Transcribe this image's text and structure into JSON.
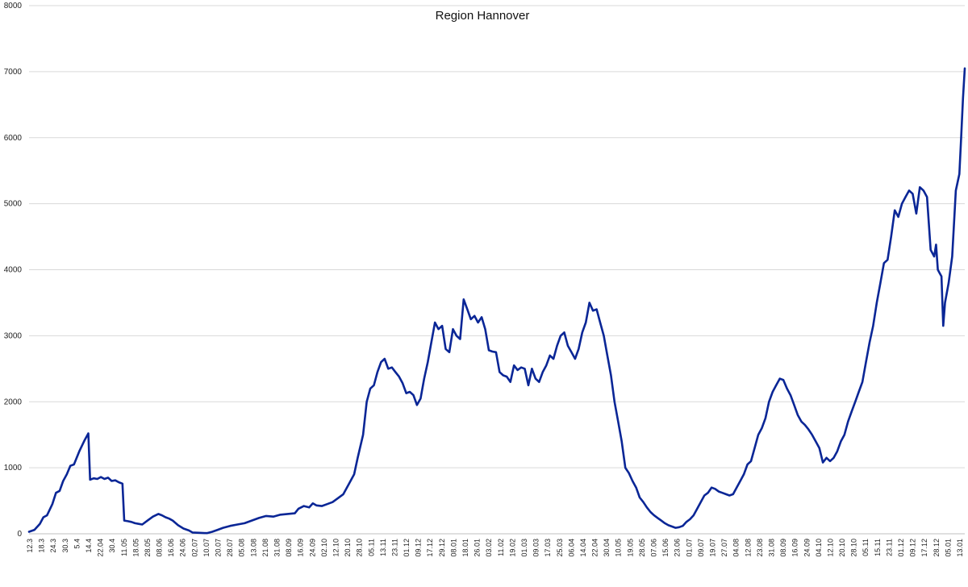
{
  "chart_data": {
    "type": "line",
    "title": "Region Hannover",
    "xlabel": "",
    "ylabel": "",
    "ylim": [
      0,
      8000
    ],
    "yticks": [
      "0",
      "1000",
      "2000",
      "3000",
      "4000",
      "5000",
      "6000",
      "7000",
      "8000"
    ],
    "grid": true,
    "legend": "none",
    "line_color": "#0a2696",
    "grid_color": "#d9d9d9",
    "x_tick_labels": [
      "12.3",
      "18.3",
      "24.3",
      "30.3",
      "5.4",
      "14.4",
      "22.04",
      "30.4",
      "11.05",
      "18.05",
      "28.05",
      "08.06",
      "16.06",
      "24.06",
      "02.07",
      "10.07",
      "20.07",
      "28.07",
      "05.08",
      "13.08",
      "21.08",
      "31.08",
      "08.09",
      "16.09",
      "24.09",
      "02.10",
      "12.10",
      "20.10",
      "28.10",
      "05.11",
      "13.11",
      "23.11",
      "01.12",
      "09.12",
      "17.12",
      "29.12",
      "08.01",
      "18.01",
      "26.01",
      "03.02",
      "11.02",
      "19.02",
      "01.03",
      "09.03",
      "17.03",
      "25.03",
      "06.04",
      "14.04",
      "22.04",
      "30.04",
      "10.05",
      "19.05",
      "28.05",
      "07.06",
      "15.06",
      "23.06",
      "01.07",
      "09.07",
      "19.07",
      "27.07",
      "04.08",
      "12.08",
      "23.08",
      "31.08",
      "08.09",
      "16.09",
      "24.09",
      "04.10",
      "12.10",
      "20.10",
      "28.10",
      "05.11",
      "15.11",
      "23.11",
      "01.12",
      "09.12",
      "17.12",
      "28.12",
      "05.01",
      "13.01"
    ],
    "series": [
      {
        "values": [
          [
            0,
            30
          ],
          [
            3,
            60
          ],
          [
            6,
            150
          ],
          [
            8,
            250
          ],
          [
            10,
            280
          ],
          [
            13,
            450
          ],
          [
            15,
            620
          ],
          [
            17,
            650
          ],
          [
            19,
            800
          ],
          [
            21,
            900
          ],
          [
            23,
            1030
          ],
          [
            25,
            1050
          ],
          [
            28,
            1250
          ],
          [
            31,
            1420
          ],
          [
            33,
            1520
          ],
          [
            34,
            820
          ],
          [
            36,
            840
          ],
          [
            38,
            830
          ],
          [
            40,
            860
          ],
          [
            42,
            830
          ],
          [
            44,
            850
          ],
          [
            46,
            800
          ],
          [
            48,
            810
          ],
          [
            50,
            780
          ],
          [
            52,
            760
          ],
          [
            53,
            200
          ],
          [
            55,
            190
          ],
          [
            57,
            180
          ],
          [
            59,
            160
          ],
          [
            61,
            150
          ],
          [
            63,
            140
          ],
          [
            66,
            200
          ],
          [
            69,
            260
          ],
          [
            72,
            300
          ],
          [
            74,
            280
          ],
          [
            76,
            250
          ],
          [
            78,
            230
          ],
          [
            80,
            200
          ],
          [
            83,
            130
          ],
          [
            86,
            80
          ],
          [
            89,
            50
          ],
          [
            91,
            20
          ],
          [
            95,
            15
          ],
          [
            99,
            10
          ],
          [
            102,
            30
          ],
          [
            105,
            60
          ],
          [
            108,
            90
          ],
          [
            112,
            120
          ],
          [
            116,
            140
          ],
          [
            120,
            160
          ],
          [
            124,
            200
          ],
          [
            128,
            240
          ],
          [
            132,
            270
          ],
          [
            136,
            260
          ],
          [
            140,
            290
          ],
          [
            144,
            300
          ],
          [
            148,
            310
          ],
          [
            150,
            380
          ],
          [
            153,
            420
          ],
          [
            156,
            400
          ],
          [
            158,
            460
          ],
          [
            160,
            430
          ],
          [
            163,
            420
          ],
          [
            166,
            450
          ],
          [
            169,
            480
          ],
          [
            172,
            540
          ],
          [
            175,
            600
          ],
          [
            178,
            750
          ],
          [
            181,
            900
          ],
          [
            183,
            1150
          ],
          [
            186,
            1500
          ],
          [
            188,
            2000
          ],
          [
            190,
            2200
          ],
          [
            192,
            2250
          ],
          [
            194,
            2450
          ],
          [
            196,
            2600
          ],
          [
            198,
            2650
          ],
          [
            200,
            2500
          ],
          [
            202,
            2520
          ],
          [
            204,
            2450
          ],
          [
            206,
            2380
          ],
          [
            208,
            2280
          ],
          [
            210,
            2130
          ],
          [
            212,
            2150
          ],
          [
            214,
            2100
          ],
          [
            216,
            1950
          ],
          [
            218,
            2050
          ],
          [
            220,
            2350
          ],
          [
            222,
            2600
          ],
          [
            224,
            2900
          ],
          [
            226,
            3200
          ],
          [
            228,
            3100
          ],
          [
            230,
            3150
          ],
          [
            232,
            2800
          ],
          [
            234,
            2750
          ],
          [
            236,
            3100
          ],
          [
            238,
            3000
          ],
          [
            240,
            2950
          ],
          [
            242,
            3550
          ],
          [
            244,
            3400
          ],
          [
            246,
            3250
          ],
          [
            248,
            3300
          ],
          [
            250,
            3200
          ],
          [
            252,
            3280
          ],
          [
            254,
            3100
          ],
          [
            256,
            2780
          ],
          [
            258,
            2760
          ],
          [
            260,
            2750
          ],
          [
            262,
            2450
          ],
          [
            264,
            2400
          ],
          [
            266,
            2380
          ],
          [
            268,
            2300
          ],
          [
            270,
            2550
          ],
          [
            272,
            2480
          ],
          [
            274,
            2520
          ],
          [
            276,
            2500
          ],
          [
            278,
            2250
          ],
          [
            280,
            2500
          ],
          [
            282,
            2350
          ],
          [
            284,
            2300
          ],
          [
            286,
            2450
          ],
          [
            288,
            2550
          ],
          [
            290,
            2700
          ],
          [
            292,
            2650
          ],
          [
            294,
            2850
          ],
          [
            296,
            3000
          ],
          [
            298,
            3050
          ],
          [
            300,
            2850
          ],
          [
            302,
            2750
          ],
          [
            304,
            2650
          ],
          [
            306,
            2800
          ],
          [
            308,
            3050
          ],
          [
            310,
            3200
          ],
          [
            312,
            3500
          ],
          [
            314,
            3380
          ],
          [
            316,
            3400
          ],
          [
            318,
            3200
          ],
          [
            320,
            3000
          ],
          [
            322,
            2700
          ],
          [
            324,
            2400
          ],
          [
            326,
            2000
          ],
          [
            328,
            1700
          ],
          [
            330,
            1400
          ],
          [
            332,
            1000
          ],
          [
            334,
            920
          ],
          [
            336,
            800
          ],
          [
            338,
            700
          ],
          [
            340,
            550
          ],
          [
            342,
            480
          ],
          [
            344,
            400
          ],
          [
            346,
            330
          ],
          [
            348,
            280
          ],
          [
            350,
            240
          ],
          [
            352,
            200
          ],
          [
            354,
            160
          ],
          [
            356,
            130
          ],
          [
            358,
            110
          ],
          [
            360,
            90
          ],
          [
            362,
            100
          ],
          [
            364,
            120
          ],
          [
            366,
            180
          ],
          [
            368,
            220
          ],
          [
            370,
            280
          ],
          [
            372,
            380
          ],
          [
            374,
            480
          ],
          [
            376,
            580
          ],
          [
            378,
            620
          ],
          [
            380,
            700
          ],
          [
            382,
            680
          ],
          [
            384,
            640
          ],
          [
            386,
            620
          ],
          [
            388,
            600
          ],
          [
            390,
            580
          ],
          [
            392,
            600
          ],
          [
            394,
            700
          ],
          [
            396,
            800
          ],
          [
            398,
            900
          ],
          [
            400,
            1050
          ],
          [
            402,
            1100
          ],
          [
            404,
            1300
          ],
          [
            406,
            1500
          ],
          [
            408,
            1600
          ],
          [
            410,
            1750
          ],
          [
            412,
            2000
          ],
          [
            414,
            2150
          ],
          [
            416,
            2250
          ],
          [
            418,
            2350
          ],
          [
            420,
            2330
          ],
          [
            422,
            2200
          ],
          [
            424,
            2100
          ],
          [
            426,
            1950
          ],
          [
            428,
            1800
          ],
          [
            430,
            1700
          ],
          [
            432,
            1650
          ],
          [
            434,
            1580
          ],
          [
            436,
            1500
          ],
          [
            438,
            1400
          ],
          [
            440,
            1300
          ],
          [
            442,
            1080
          ],
          [
            444,
            1150
          ],
          [
            446,
            1100
          ],
          [
            448,
            1150
          ],
          [
            450,
            1250
          ],
          [
            452,
            1400
          ],
          [
            454,
            1500
          ],
          [
            456,
            1700
          ],
          [
            458,
            1850
          ],
          [
            460,
            2000
          ],
          [
            462,
            2150
          ],
          [
            464,
            2300
          ],
          [
            466,
            2600
          ],
          [
            468,
            2900
          ],
          [
            470,
            3150
          ],
          [
            472,
            3500
          ],
          [
            474,
            3800
          ],
          [
            476,
            4100
          ],
          [
            478,
            4150
          ],
          [
            480,
            4500
          ],
          [
            482,
            4900
          ],
          [
            484,
            4800
          ],
          [
            486,
            5000
          ],
          [
            488,
            5100
          ],
          [
            490,
            5200
          ],
          [
            492,
            5150
          ],
          [
            494,
            4850
          ],
          [
            496,
            5250
          ],
          [
            498,
            5200
          ],
          [
            500,
            5100
          ],
          [
            502,
            4300
          ],
          [
            504,
            4200
          ],
          [
            505,
            4380
          ],
          [
            506,
            4000
          ],
          [
            507,
            3950
          ],
          [
            508,
            3900
          ],
          [
            509,
            3150
          ],
          [
            510,
            3500
          ],
          [
            512,
            3800
          ],
          [
            514,
            4200
          ],
          [
            516,
            5200
          ],
          [
            518,
            5450
          ],
          [
            519,
            6000
          ],
          [
            520,
            6600
          ],
          [
            521,
            7050
          ]
        ]
      }
    ]
  }
}
